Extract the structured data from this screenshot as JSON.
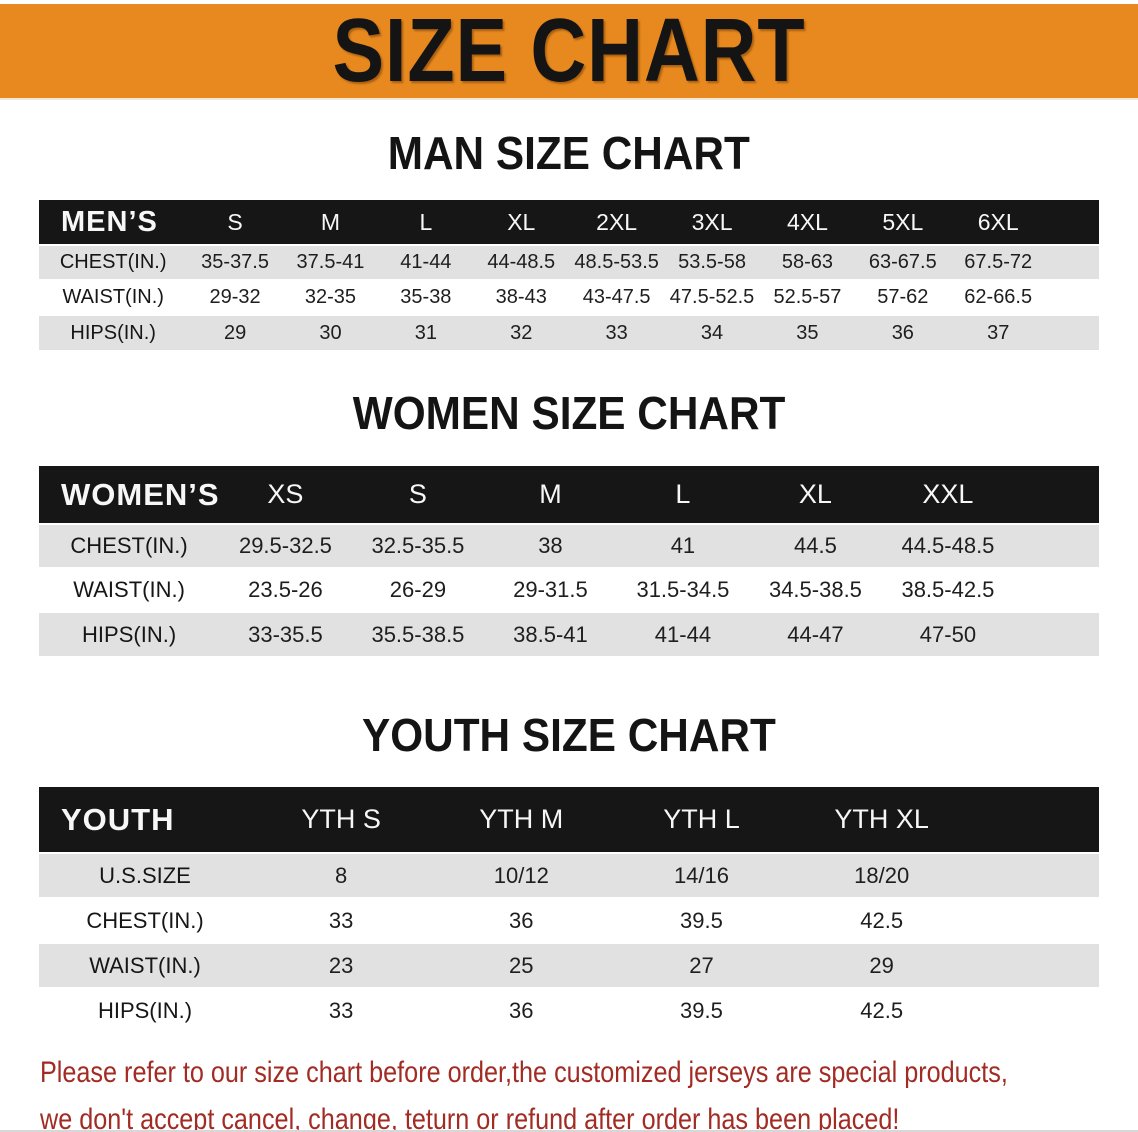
{
  "banner": {
    "title": "SIZE CHART",
    "bg_color": "#E7891E",
    "text_color": "#141414"
  },
  "sections": [
    {
      "heading": "MAN SIZE CHART",
      "table": {
        "label": "MEN’S",
        "columns": [
          "S",
          "M",
          "L",
          "XL",
          "2XL",
          "3XL",
          "4XL",
          "5XL",
          "6XL"
        ],
        "rows": [
          {
            "label": "CHEST(IN.)",
            "values": [
              "35-37.5",
              "37.5-41",
              "41-44",
              "44-48.5",
              "48.5-53.5",
              "53.5-58",
              "58-63",
              "63-67.5",
              "67.5-72"
            ]
          },
          {
            "label": "WAIST(IN.)",
            "values": [
              "29-32",
              "32-35",
              "35-38",
              "38-43",
              "43-47.5",
              "47.5-52.5",
              "52.5-57",
              "57-62",
              "62-66.5"
            ]
          },
          {
            "label": "HIPS(IN.)",
            "values": [
              "29",
              "30",
              "31",
              "32",
              "33",
              "34",
              "35",
              "36",
              "37"
            ]
          }
        ]
      }
    },
    {
      "heading": "WOMEN SIZE CHART",
      "table": {
        "label": "WOMEN’S",
        "columns": [
          "XS",
          "S",
          "M",
          "L",
          "XL",
          "XXL"
        ],
        "rows": [
          {
            "label": "CHEST(IN.)",
            "values": [
              "29.5-32.5",
              "32.5-35.5",
              "38",
              "41",
              "44.5",
              "44.5-48.5"
            ]
          },
          {
            "label": "WAIST(IN.)",
            "values": [
              "23.5-26",
              "26-29",
              "29-31.5",
              "31.5-34.5",
              "34.5-38.5",
              "38.5-42.5"
            ]
          },
          {
            "label": "HIPS(IN.)",
            "values": [
              "33-35.5",
              "35.5-38.5",
              "38.5-41",
              "41-44",
              "44-47",
              "47-50"
            ]
          }
        ]
      }
    },
    {
      "heading": "YOUTH SIZE CHART",
      "table": {
        "label": "YOUTH",
        "columns": [
          "YTH S",
          "YTH M",
          "YTH L",
          "YTH XL"
        ],
        "rows": [
          {
            "label": "U.S.SIZE",
            "values": [
              "8",
              "10/12",
              "14/16",
              "18/20"
            ]
          },
          {
            "label": "CHEST(IN.)",
            "values": [
              "33",
              "36",
              "39.5",
              "42.5"
            ]
          },
          {
            "label": "WAIST(IN.)",
            "values": [
              "23",
              "25",
              "27",
              "29"
            ]
          },
          {
            "label": "HIPS(IN.)",
            "values": [
              "33",
              "36",
              "39.5",
              "42.5"
            ]
          }
        ]
      }
    }
  ],
  "disclaimer": {
    "line1": "Please refer to our size chart before order,the customized jerseys are special products,",
    "line2": "we don't accept cancel, change, teturn or refund after order has been placed!",
    "color": "#A22C24"
  }
}
